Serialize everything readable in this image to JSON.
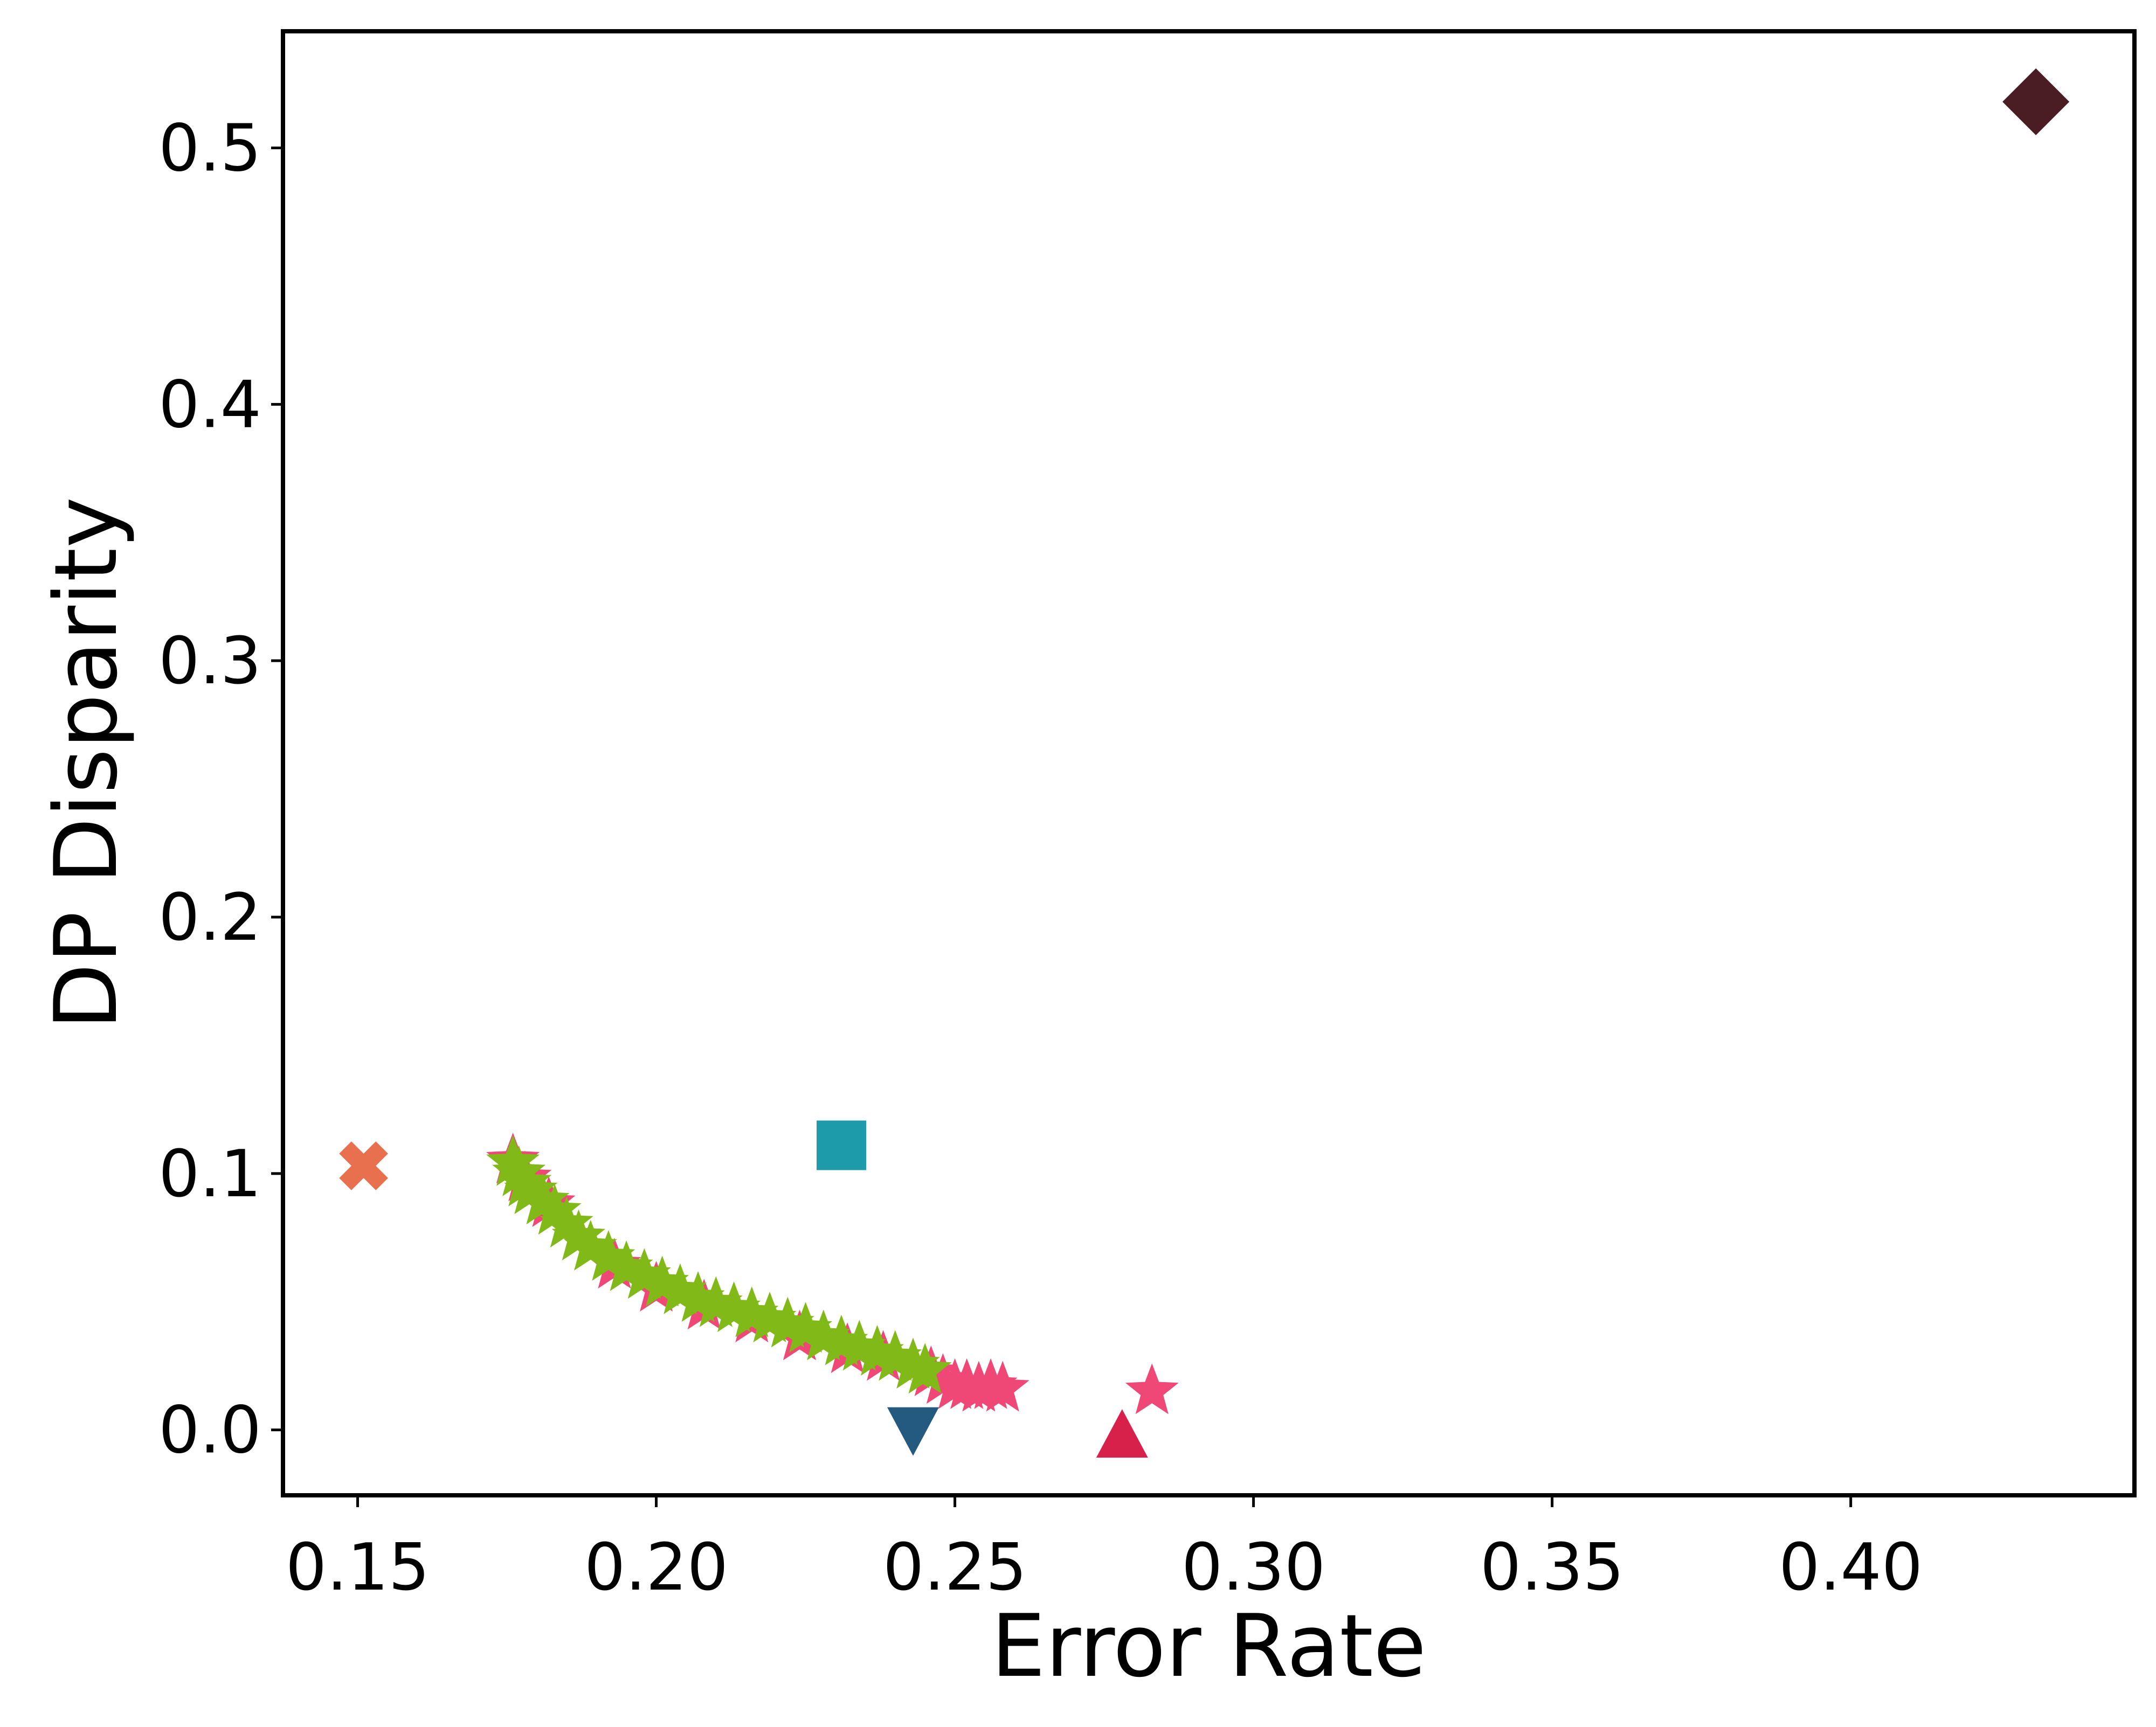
{
  "chart_data": {
    "type": "scatter",
    "title": "",
    "xlabel": "Error Rate",
    "ylabel": "DP Disparity",
    "xlim": [
      0.1375,
      0.4475
    ],
    "ylim": [
      -0.0255,
      0.5455
    ],
    "xticks": [
      0.15,
      0.2,
      0.25,
      0.3,
      0.35,
      0.4
    ],
    "xtick_labels": [
      "0.15",
      "0.20",
      "0.25",
      "0.30",
      "0.35",
      "0.40"
    ],
    "yticks": [
      0.0,
      0.1,
      0.2,
      0.3,
      0.4,
      0.5
    ],
    "ytick_labels": [
      "0.0",
      "0.1",
      "0.2",
      "0.3",
      "0.4",
      "0.5"
    ],
    "grid": false,
    "legend": "none",
    "series": [
      {
        "marker": "diamond",
        "color": "#4a1c24",
        "points": [
          [
            0.431,
            0.518
          ]
        ]
      },
      {
        "marker": "x",
        "color": "#e8704e",
        "points": [
          [
            0.151,
            0.103
          ]
        ]
      },
      {
        "marker": "square",
        "color": "#1e9baa",
        "points": [
          [
            0.231,
            0.111
          ]
        ]
      },
      {
        "marker": "triangle-down",
        "color": "#245a80",
        "points": [
          [
            0.243,
            0.0
          ]
        ]
      },
      {
        "marker": "triangle-up",
        "color": "#d7214b",
        "points": [
          [
            0.278,
            -0.002
          ]
        ]
      },
      {
        "marker": "star",
        "color": "#ef4876",
        "points": [
          [
            0.176,
            0.105
          ],
          [
            0.178,
            0.098
          ],
          [
            0.182,
            0.088
          ],
          [
            0.187,
            0.075
          ],
          [
            0.193,
            0.064
          ],
          [
            0.2,
            0.055
          ],
          [
            0.208,
            0.048
          ],
          [
            0.216,
            0.043
          ],
          [
            0.224,
            0.036
          ],
          [
            0.232,
            0.031
          ],
          [
            0.238,
            0.028
          ],
          [
            0.243,
            0.025
          ],
          [
            0.246,
            0.022
          ],
          [
            0.248,
            0.019
          ],
          [
            0.25,
            0.017
          ],
          [
            0.252,
            0.017
          ],
          [
            0.254,
            0.016
          ],
          [
            0.256,
            0.017
          ],
          [
            0.258,
            0.016
          ],
          [
            0.283,
            0.015
          ]
        ]
      },
      {
        "marker": "star",
        "color": "#80b918",
        "points": [
          [
            0.176,
            0.104
          ],
          [
            0.177,
            0.1
          ],
          [
            0.178,
            0.096
          ],
          [
            0.179,
            0.093
          ],
          [
            0.181,
            0.089
          ],
          [
            0.183,
            0.085
          ],
          [
            0.185,
            0.08
          ],
          [
            0.187,
            0.075
          ],
          [
            0.189,
            0.071
          ],
          [
            0.192,
            0.067
          ],
          [
            0.195,
            0.063
          ],
          [
            0.198,
            0.06
          ],
          [
            0.201,
            0.057
          ],
          [
            0.204,
            0.054
          ],
          [
            0.207,
            0.051
          ],
          [
            0.21,
            0.049
          ],
          [
            0.213,
            0.047
          ],
          [
            0.216,
            0.045
          ],
          [
            0.219,
            0.043
          ],
          [
            0.222,
            0.041
          ],
          [
            0.225,
            0.039
          ],
          [
            0.228,
            0.036
          ],
          [
            0.231,
            0.034
          ],
          [
            0.234,
            0.032
          ],
          [
            0.237,
            0.03
          ],
          [
            0.24,
            0.028
          ],
          [
            0.243,
            0.025
          ],
          [
            0.245,
            0.023
          ]
        ]
      }
    ]
  }
}
